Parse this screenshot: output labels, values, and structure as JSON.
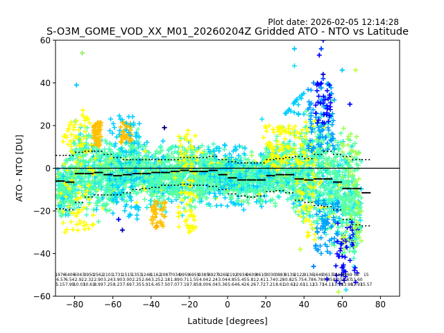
{
  "chart_data": {
    "type": "scatter",
    "plot_date": "Plot date: 2026-02-05 12:14:28",
    "title": "S-O3M_GOME_VOD_XX_M01_20260204Z Gridded ATO - NTO vs Latitude",
    "xlabel": "Latitude [degrees]",
    "ylabel": "ATO - NTO [DU]",
    "xlim": [
      -90,
      90
    ],
    "ylim": [
      -60,
      60
    ],
    "xticks": [
      -80,
      -60,
      -40,
      -20,
      0,
      20,
      40,
      60,
      80
    ],
    "yticks": [
      -60,
      -40,
      -20,
      0,
      20,
      40,
      60
    ],
    "zero_line": 0,
    "envelope_segments": [
      {
        "lat": -87.5,
        "upper": 6.0,
        "lower": -19.0
      },
      {
        "lat": -82.5,
        "upper": 6.0,
        "lower": -19.5
      },
      {
        "lat": -77.5,
        "upper": 7.5,
        "lower": -16.0
      },
      {
        "lat": -72.5,
        "upper": 8.0,
        "lower": -13.5
      },
      {
        "lat": -67.5,
        "upper": 8.0,
        "lower": -12.5
      },
      {
        "lat": -62.5,
        "upper": 6.5,
        "lower": -12.5
      },
      {
        "lat": -57.5,
        "upper": 5.0,
        "lower": -12.5
      },
      {
        "lat": -52.5,
        "upper": 4.0,
        "lower": -11.5
      },
      {
        "lat": -47.5,
        "upper": 4.0,
        "lower": -10.0
      },
      {
        "lat": -42.5,
        "upper": 4.0,
        "lower": -9.5
      },
      {
        "lat": -37.5,
        "upper": 4.0,
        "lower": -9.0
      },
      {
        "lat": -32.5,
        "upper": 4.0,
        "lower": -8.0
      },
      {
        "lat": -27.5,
        "upper": 4.0,
        "lower": -8.0
      },
      {
        "lat": -22.5,
        "upper": 5.0,
        "lower": -7.5
      },
      {
        "lat": -17.5,
        "upper": 5.0,
        "lower": -8.0
      },
      {
        "lat": -12.5,
        "upper": 5.0,
        "lower": -8.0
      },
      {
        "lat": -7.5,
        "upper": 5.5,
        "lower": -8.5
      },
      {
        "lat": -2.5,
        "upper": 4.0,
        "lower": -10.0
      },
      {
        "lat": 2.5,
        "upper": 3.0,
        "lower": -12.0
      },
      {
        "lat": 7.5,
        "upper": 2.5,
        "lower": -13.0
      },
      {
        "lat": 12.5,
        "upper": 2.5,
        "lower": -13.5
      },
      {
        "lat": 17.5,
        "upper": 2.5,
        "lower": -13.0
      },
      {
        "lat": 22.5,
        "upper": 4.0,
        "lower": -11.0
      },
      {
        "lat": 27.5,
        "upper": 4.5,
        "lower": -10.5
      },
      {
        "lat": 32.5,
        "upper": 5.0,
        "lower": -11.5
      },
      {
        "lat": 37.5,
        "upper": 5.5,
        "lower": -15.0
      },
      {
        "lat": 42.5,
        "upper": 4.5,
        "lower": -16.0
      },
      {
        "lat": 47.5,
        "upper": 6.5,
        "lower": -17.5
      },
      {
        "lat": 52.5,
        "upper": 8.0,
        "lower": -18.0
      },
      {
        "lat": 57.5,
        "upper": 6.5,
        "lower": -19.5
      },
      {
        "lat": 62.5,
        "upper": 5.5,
        "lower": -24.0
      },
      {
        "lat": 67.5,
        "upper": 4.0,
        "lower": -26.5
      },
      {
        "lat": 72.5,
        "upper": 4.0,
        "lower": -27.0
      }
    ],
    "mean_segments": [
      {
        "lat": -87.5,
        "value": -6.0
      },
      {
        "lat": -82.5,
        "value": -6.5
      },
      {
        "lat": -77.5,
        "value": -2.5
      },
      {
        "lat": -72.5,
        "value": -2.5
      },
      {
        "lat": -67.5,
        "value": -2.0
      },
      {
        "lat": -62.5,
        "value": -3.0
      },
      {
        "lat": -57.5,
        "value": -3.5
      },
      {
        "lat": -52.5,
        "value": -3.0
      },
      {
        "lat": -47.5,
        "value": -2.5
      },
      {
        "lat": -42.5,
        "value": -2.5
      },
      {
        "lat": -37.5,
        "value": -2.0
      },
      {
        "lat": -32.5,
        "value": -2.0
      },
      {
        "lat": -27.5,
        "value": -1.5
      },
      {
        "lat": -22.5,
        "value": -1.0
      },
      {
        "lat": -17.5,
        "value": -1.5
      },
      {
        "lat": -12.5,
        "value": -1.5
      },
      {
        "lat": -7.5,
        "value": -1.0
      },
      {
        "lat": -2.5,
        "value": -3.0
      },
      {
        "lat": 2.5,
        "value": -4.5
      },
      {
        "lat": 7.5,
        "value": -5.5
      },
      {
        "lat": 12.5,
        "value": -5.5
      },
      {
        "lat": 17.5,
        "value": -5.5
      },
      {
        "lat": 22.5,
        "value": -3.5
      },
      {
        "lat": 27.5,
        "value": -3.0
      },
      {
        "lat": 32.5,
        "value": -3.0
      },
      {
        "lat": 37.5,
        "value": -5.0
      },
      {
        "lat": 42.5,
        "value": -5.5
      },
      {
        "lat": 47.5,
        "value": -5.0
      },
      {
        "lat": 52.5,
        "value": -5.0
      },
      {
        "lat": 57.5,
        "value": -6.5
      },
      {
        "lat": 62.5,
        "value": -9.5
      },
      {
        "lat": 67.5,
        "value": -9.5
      },
      {
        "lat": 72.5,
        "value": -11.5
      }
    ],
    "cloud_profile": [
      {
        "lat": -89,
        "upper": 6,
        "lower": -24
      },
      {
        "lat": -84,
        "upper": 10,
        "lower": -29
      },
      {
        "lat": -79,
        "upper": 25,
        "lower": -28
      },
      {
        "lat": -74,
        "upper": 30,
        "lower": -32
      },
      {
        "lat": -69,
        "upper": 26,
        "lower": -31
      },
      {
        "lat": -64,
        "upper": 20,
        "lower": -26
      },
      {
        "lat": -59,
        "upper": 18,
        "lower": -24
      },
      {
        "lat": -54,
        "upper": 20,
        "lower": -22
      },
      {
        "lat": -49,
        "upper": 22,
        "lower": -20
      },
      {
        "lat": -44,
        "upper": 16,
        "lower": -20
      },
      {
        "lat": -39,
        "upper": 14,
        "lower": -24
      },
      {
        "lat": -34,
        "upper": 16,
        "lower": -22
      },
      {
        "lat": -29,
        "upper": 15,
        "lower": -20
      },
      {
        "lat": -24,
        "upper": 15,
        "lower": -22
      },
      {
        "lat": -19,
        "upper": 18,
        "lower": -24
      },
      {
        "lat": -14,
        "upper": 16,
        "lower": -22
      },
      {
        "lat": -9,
        "upper": 14,
        "lower": -20
      },
      {
        "lat": -4,
        "upper": 12,
        "lower": -16
      },
      {
        "lat": 1,
        "upper": 10,
        "lower": -17
      },
      {
        "lat": 6,
        "upper": 10,
        "lower": -19
      },
      {
        "lat": 11,
        "upper": 10,
        "lower": -20
      },
      {
        "lat": 16,
        "upper": 12,
        "lower": -21
      },
      {
        "lat": 21,
        "upper": 16,
        "lower": -20
      },
      {
        "lat": 26,
        "upper": 18,
        "lower": -20
      },
      {
        "lat": 31,
        "upper": 20,
        "lower": -22
      },
      {
        "lat": 36,
        "upper": 26,
        "lower": -30
      },
      {
        "lat": 41,
        "upper": 30,
        "lower": -36
      },
      {
        "lat": 46,
        "upper": 34,
        "lower": -38
      },
      {
        "lat": 51,
        "upper": 36,
        "lower": -42
      },
      {
        "lat": 56,
        "upper": 30,
        "lower": -46
      },
      {
        "lat": 61,
        "upper": 26,
        "lower": -50
      },
      {
        "lat": 66,
        "upper": 22,
        "lower": -55
      },
      {
        "lat": 70,
        "upper": 12,
        "lower": -50
      }
    ],
    "outliers": [
      {
        "lat": -76,
        "value": 54,
        "color": "#90f060"
      },
      {
        "lat": -79,
        "value": 39,
        "color": "#00c8ff"
      },
      {
        "lat": -33,
        "value": 19,
        "color": "#000080"
      },
      {
        "lat": -57,
        "value": -24,
        "color": "#0000ff"
      },
      {
        "lat": -55,
        "value": -29,
        "color": "#0000c0"
      },
      {
        "lat": 35,
        "value": 56,
        "color": "#00c8ff"
      },
      {
        "lat": 35,
        "value": 48,
        "color": "#20e0f0"
      },
      {
        "lat": 48,
        "value": 53,
        "color": "#0000ff"
      },
      {
        "lat": 49,
        "value": 56,
        "color": "#0040ff"
      },
      {
        "lat": 50,
        "value": 60,
        "color": "#0000ff"
      },
      {
        "lat": 50,
        "value": 44,
        "color": "#0000c0"
      },
      {
        "lat": 50,
        "value": 42,
        "color": "#0040ff"
      },
      {
        "lat": 60,
        "value": 46,
        "color": "#00c8ff"
      },
      {
        "lat": 67,
        "value": 46,
        "color": "#c0ff40"
      },
      {
        "lat": 45,
        "value": 40,
        "color": "#0080ff"
      },
      {
        "lat": 64,
        "value": 30,
        "color": "#0000ff"
      },
      {
        "lat": 38,
        "value": -38,
        "color": "#c8ff30"
      },
      {
        "lat": 45,
        "value": -46,
        "color": "#0080ff"
      },
      {
        "lat": 52,
        "value": -52,
        "color": "#0000ff"
      },
      {
        "lat": 58,
        "value": -58,
        "color": "#c0ff40"
      },
      {
        "lat": 62,
        "value": -57,
        "color": "#20e0f0"
      },
      {
        "lat": -37,
        "value": -27,
        "color": "#ffa500"
      },
      {
        "lat": -20,
        "value": -30,
        "color": "#ffff00"
      },
      {
        "lat": 18,
        "value": 23,
        "color": "#20e0f0"
      },
      {
        "lat": -85,
        "value": -30,
        "color": "#ffff00"
      }
    ],
    "stats_columns": [
      {
        "lat": -87.5,
        "n": "1976",
        "mean": "-6.57",
        "sd": "5.15"
      },
      {
        "lat": -82.5,
        "n": "6406",
        "mean": "6.54",
        "sd": "7.99"
      },
      {
        "lat": -77.5,
        "n": "6043",
        "mean": "2.92",
        "sd": "10.03"
      },
      {
        "lat": -72.5,
        "n": "3950",
        "mean": "2.32",
        "sd": "10.61"
      },
      {
        "lat": -67.5,
        "n": "2562",
        "mean": "2.90",
        "sd": "8.99"
      },
      {
        "lat": -62.5,
        "n": "2101",
        "mean": "3.24",
        "sd": "7.25"
      },
      {
        "lat": -57.5,
        "n": "1731",
        "mean": "3.90",
        "sd": "8.23"
      },
      {
        "lat": -52.5,
        "n": "1515",
        "mean": "3.00",
        "sd": "7.69"
      },
      {
        "lat": -47.5,
        "n": "1353",
        "mean": "2.25",
        "sd": "7.35"
      },
      {
        "lat": -42.5,
        "n": "1248",
        "mean": "2.66",
        "sd": "5.91"
      },
      {
        "lat": -37.5,
        "n": "1162",
        "mean": "3.25",
        "sd": "6.45"
      },
      {
        "lat": -32.5,
        "n": "2087",
        "mean": "2.18",
        "sd": "7.50"
      },
      {
        "lat": -27.5,
        "n": "7034",
        "mean": "1.89",
        "sd": "7.07"
      },
      {
        "lat": -22.5,
        "n": "9959",
        "mean": "0.71",
        "sd": "7.19"
      },
      {
        "lat": -17.5,
        "n": "6959",
        "mean": "1.55",
        "sd": "7.85"
      },
      {
        "lat": -12.5,
        "n": "9385",
        "mean": "4.04",
        "sd": "8.00"
      },
      {
        "lat": -7.5,
        "n": "8927",
        "mean": "2.24",
        "sd": "6.04"
      },
      {
        "lat": -2.5,
        "n": "9269",
        "mean": "3.04",
        "sd": "5.36"
      },
      {
        "lat": 2.5,
        "n": "2192",
        "mean": "4.85",
        "sd": "5.64"
      },
      {
        "lat": 7.5,
        "n": "0934",
        "mean": "5.45",
        "sd": "6.42"
      },
      {
        "lat": 12.5,
        "n": "9609",
        "mean": "5.81",
        "sd": "6.26"
      },
      {
        "lat": 17.5,
        "n": "8610",
        "mean": "2.41",
        "sd": "7.72"
      },
      {
        "lat": 22.5,
        "n": "3030",
        "mean": "1.74",
        "sd": "7.21"
      },
      {
        "lat": 27.5,
        "n": "0883",
        "mean": "0.28",
        "sd": "8.61"
      },
      {
        "lat": 32.5,
        "n": "8139",
        "mean": "0.82",
        "sd": "10.62"
      },
      {
        "lat": 37.5,
        "n": "2122",
        "mean": "5.75",
        "sd": "12.61"
      },
      {
        "lat": 42.5,
        "n": "9136",
        "mean": "4.78",
        "sd": "11.12"
      },
      {
        "lat": 47.5,
        "n": "1649",
        "mean": "6.78",
        "sd": "13.73"
      },
      {
        "lat": 52.5,
        "n": "0613",
        "mean": "0.85",
        "sd": "14.11"
      },
      {
        "lat": 57.5,
        "n": "7843",
        "mean": "8.03",
        "sd": "13.78"
      },
      {
        "lat": 62.5,
        "n": "8069",
        "mean": "9.87",
        "sd": "13.98"
      },
      {
        "lat": 67.5,
        "n": "60",
        "mean": "11.60",
        "sd": "12.93"
      },
      {
        "lat": 72.5,
        "n": "15",
        "mean": "",
        "sd": "15.57"
      }
    ],
    "colors": {
      "cloud_base": "#5cffa0",
      "palette": [
        "#5cffa0",
        "#40ffc0",
        "#20e8f0",
        "#00d0ff",
        "#a0ff50",
        "#ffff00",
        "#ffc000",
        "#00a0ff",
        "#0000ff"
      ],
      "line": "#000000"
    }
  }
}
